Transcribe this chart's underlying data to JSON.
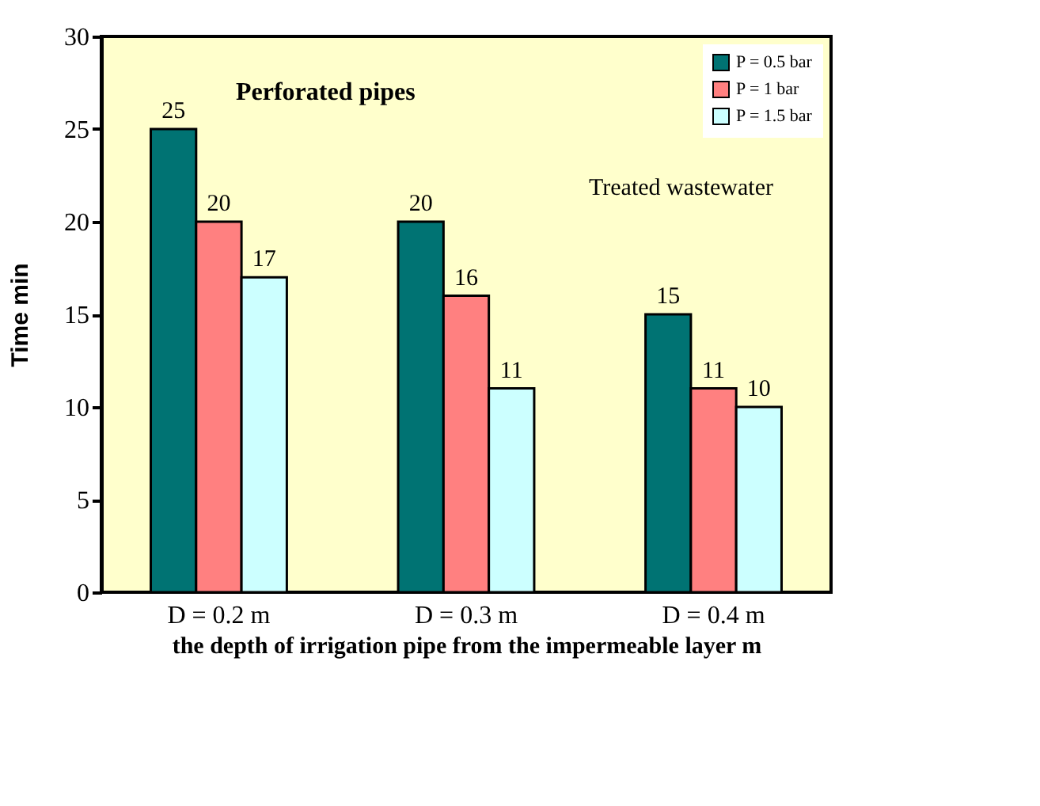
{
  "chart_data": {
    "type": "bar",
    "title": "Perforated pipes",
    "annotations": [
      "Treated wastewater"
    ],
    "xlabel": "the depth of irrigation pipe from the impermeable layer m",
    "ylabel": "Time min",
    "categories": [
      "D = 0.2 m",
      "D = 0.3 m",
      "D = 0.4 m"
    ],
    "series": [
      {
        "name": "P = 0.5 bar",
        "color": "#007373",
        "values": [
          25,
          20,
          15
        ]
      },
      {
        "name": "P = 1 bar",
        "color": "#ff8080",
        "values": [
          20,
          16,
          11
        ]
      },
      {
        "name": "P = 1.5 bar",
        "color": "#ccffff",
        "values": [
          17,
          11,
          10
        ]
      }
    ],
    "ylim": [
      0,
      30
    ],
    "yticks": [
      0,
      5,
      10,
      15,
      20,
      25,
      30
    ],
    "data_labels": true,
    "legend": "top right",
    "grid": false
  }
}
